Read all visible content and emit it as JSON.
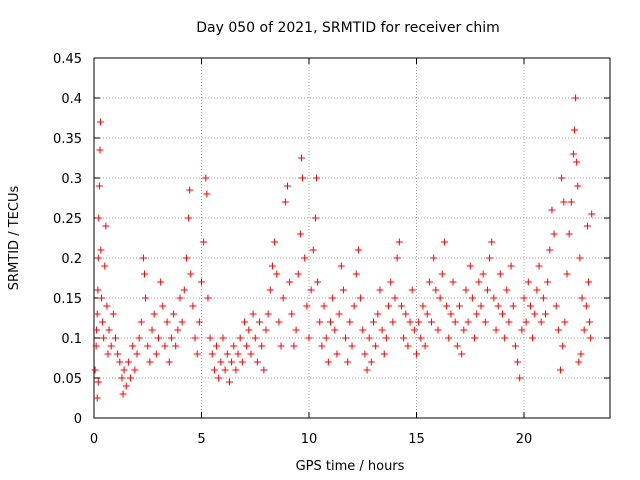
{
  "chart_data": {
    "type": "scatter",
    "title": "Day 050 of 2021, SRMTID for receiver chim",
    "xlabel": "GPS time / hours",
    "ylabel": "SRMTID / TECUs",
    "xlim": [
      0,
      24
    ],
    "ylim": [
      0,
      0.45
    ],
    "x_ticks": [
      0,
      5,
      10,
      15,
      20
    ],
    "x_tick_labels": [
      "0",
      "5",
      "10",
      "15",
      "20"
    ],
    "y_ticks": [
      0,
      0.05,
      0.1,
      0.15,
      0.2,
      0.25,
      0.3,
      0.35,
      0.4,
      0.45
    ],
    "y_tick_labels": [
      "0",
      "0.05",
      "0.1",
      "0.15",
      "0.2",
      "0.25",
      "0.3",
      "0.35",
      "0.4",
      "0.45"
    ],
    "grid": true,
    "marker": "+",
    "color": "#ff0000",
    "series": [
      {
        "name": "SRMTID",
        "points": [
          [
            0.05,
            0.06
          ],
          [
            0.1,
            0.09
          ],
          [
            0.12,
            0.11
          ],
          [
            0.15,
            0.13
          ],
          [
            0.18,
            0.16
          ],
          [
            0.2,
            0.2
          ],
          [
            0.22,
            0.25
          ],
          [
            0.25,
            0.29
          ],
          [
            0.28,
            0.335
          ],
          [
            0.3,
            0.37
          ],
          [
            0.32,
            0.21
          ],
          [
            0.35,
            0.15
          ],
          [
            0.4,
            0.12
          ],
          [
            0.45,
            0.1
          ],
          [
            0.5,
            0.19
          ],
          [
            0.55,
            0.24
          ],
          [
            0.6,
            0.14
          ],
          [
            0.65,
            0.08
          ],
          [
            0.7,
            0.11
          ],
          [
            0.8,
            0.09
          ],
          [
            0.15,
            0.025
          ],
          [
            0.2,
            0.045
          ],
          [
            0.9,
            0.13
          ],
          [
            1.0,
            0.1
          ],
          [
            1.1,
            0.08
          ],
          [
            1.2,
            0.07
          ],
          [
            1.3,
            0.05
          ],
          [
            1.35,
            0.03
          ],
          [
            1.4,
            0.06
          ],
          [
            1.5,
            0.04
          ],
          [
            1.6,
            0.07
          ],
          [
            1.7,
            0.05
          ],
          [
            1.8,
            0.09
          ],
          [
            1.9,
            0.06
          ],
          [
            2.0,
            0.08
          ],
          [
            2.1,
            0.1
          ],
          [
            2.2,
            0.12
          ],
          [
            2.3,
            0.2
          ],
          [
            2.35,
            0.18
          ],
          [
            2.4,
            0.15
          ],
          [
            2.5,
            0.09
          ],
          [
            2.6,
            0.07
          ],
          [
            2.7,
            0.11
          ],
          [
            2.8,
            0.13
          ],
          [
            2.9,
            0.08
          ],
          [
            3.0,
            0.1
          ],
          [
            3.1,
            0.17
          ],
          [
            3.2,
            0.14
          ],
          [
            3.3,
            0.09
          ],
          [
            3.4,
            0.12
          ],
          [
            3.5,
            0.07
          ],
          [
            3.6,
            0.1
          ],
          [
            3.7,
            0.13
          ],
          [
            3.8,
            0.09
          ],
          [
            3.9,
            0.11
          ],
          [
            4.0,
            0.15
          ],
          [
            4.1,
            0.12
          ],
          [
            4.2,
            0.16
          ],
          [
            4.3,
            0.2
          ],
          [
            4.4,
            0.25
          ],
          [
            4.45,
            0.285
          ],
          [
            4.5,
            0.18
          ],
          [
            4.6,
            0.14
          ],
          [
            4.7,
            0.1
          ],
          [
            4.8,
            0.08
          ],
          [
            4.9,
            0.12
          ],
          [
            5.0,
            0.17
          ],
          [
            5.1,
            0.22
          ],
          [
            5.2,
            0.3
          ],
          [
            5.25,
            0.28
          ],
          [
            5.3,
            0.15
          ],
          [
            5.4,
            0.1
          ],
          [
            5.5,
            0.08
          ],
          [
            5.6,
            0.06
          ],
          [
            5.7,
            0.09
          ],
          [
            5.8,
            0.05
          ],
          [
            5.9,
            0.07
          ],
          [
            6.0,
            0.1
          ],
          [
            6.1,
            0.06
          ],
          [
            6.2,
            0.08
          ],
          [
            6.3,
            0.045
          ],
          [
            6.4,
            0.07
          ],
          [
            6.5,
            0.09
          ],
          [
            6.6,
            0.06
          ],
          [
            6.7,
            0.08
          ],
          [
            6.8,
            0.1
          ],
          [
            6.9,
            0.07
          ],
          [
            7.0,
            0.12
          ],
          [
            7.1,
            0.09
          ],
          [
            7.2,
            0.11
          ],
          [
            7.3,
            0.08
          ],
          [
            7.4,
            0.13
          ],
          [
            7.5,
            0.1
          ],
          [
            7.6,
            0.07
          ],
          [
            7.7,
            0.12
          ],
          [
            7.8,
            0.09
          ],
          [
            7.9,
            0.06
          ],
          [
            8.0,
            0.11
          ],
          [
            8.1,
            0.13
          ],
          [
            8.2,
            0.16
          ],
          [
            8.3,
            0.19
          ],
          [
            8.4,
            0.22
          ],
          [
            8.5,
            0.18
          ],
          [
            8.6,
            0.12
          ],
          [
            8.7,
            0.09
          ],
          [
            8.8,
            0.15
          ],
          [
            8.9,
            0.27
          ],
          [
            9.0,
            0.29
          ],
          [
            9.1,
            0.17
          ],
          [
            9.2,
            0.13
          ],
          [
            9.3,
            0.09
          ],
          [
            9.4,
            0.11
          ],
          [
            9.5,
            0.18
          ],
          [
            9.6,
            0.23
          ],
          [
            9.65,
            0.325
          ],
          [
            9.7,
            0.3
          ],
          [
            9.8,
            0.2
          ],
          [
            9.9,
            0.14
          ],
          [
            10.0,
            0.1
          ],
          [
            10.1,
            0.16
          ],
          [
            10.2,
            0.21
          ],
          [
            10.3,
            0.25
          ],
          [
            10.35,
            0.3
          ],
          [
            10.4,
            0.17
          ],
          [
            10.5,
            0.12
          ],
          [
            10.6,
            0.09
          ],
          [
            10.7,
            0.14
          ],
          [
            10.8,
            0.1
          ],
          [
            10.9,
            0.07
          ],
          [
            11.0,
            0.12
          ],
          [
            11.1,
            0.15
          ],
          [
            11.2,
            0.11
          ],
          [
            11.3,
            0.08
          ],
          [
            11.4,
            0.13
          ],
          [
            11.5,
            0.19
          ],
          [
            11.6,
            0.16
          ],
          [
            11.7,
            0.1
          ],
          [
            11.8,
            0.07
          ],
          [
            11.9,
            0.12
          ],
          [
            12.0,
            0.09
          ],
          [
            12.1,
            0.14
          ],
          [
            12.2,
            0.18
          ],
          [
            12.3,
            0.21
          ],
          [
            12.4,
            0.15
          ],
          [
            12.5,
            0.11
          ],
          [
            12.6,
            0.08
          ],
          [
            12.7,
            0.06
          ],
          [
            12.8,
            0.1
          ],
          [
            12.9,
            0.07
          ],
          [
            13.0,
            0.12
          ],
          [
            13.1,
            0.09
          ],
          [
            13.2,
            0.13
          ],
          [
            13.3,
            0.16
          ],
          [
            13.4,
            0.11
          ],
          [
            13.5,
            0.08
          ],
          [
            13.6,
            0.1
          ],
          [
            13.7,
            0.14
          ],
          [
            13.8,
            0.17
          ],
          [
            13.9,
            0.12
          ],
          [
            14.0,
            0.15
          ],
          [
            14.1,
            0.2
          ],
          [
            14.2,
            0.22
          ],
          [
            14.3,
            0.14
          ],
          [
            14.4,
            0.1
          ],
          [
            14.5,
            0.13
          ],
          [
            14.6,
            0.09
          ],
          [
            14.7,
            0.12
          ],
          [
            14.8,
            0.16
          ],
          [
            14.9,
            0.11
          ],
          [
            15.0,
            0.08
          ],
          [
            15.1,
            0.12
          ],
          [
            15.2,
            0.1
          ],
          [
            15.3,
            0.14
          ],
          [
            15.4,
            0.09
          ],
          [
            15.5,
            0.13
          ],
          [
            15.6,
            0.17
          ],
          [
            15.7,
            0.12
          ],
          [
            15.8,
            0.2
          ],
          [
            15.9,
            0.16
          ],
          [
            16.0,
            0.11
          ],
          [
            16.1,
            0.15
          ],
          [
            16.2,
            0.18
          ],
          [
            16.3,
            0.22
          ],
          [
            16.4,
            0.14
          ],
          [
            16.5,
            0.1
          ],
          [
            16.6,
            0.13
          ],
          [
            16.7,
            0.17
          ],
          [
            16.8,
            0.12
          ],
          [
            16.9,
            0.09
          ],
          [
            17.0,
            0.14
          ],
          [
            17.1,
            0.08
          ],
          [
            17.2,
            0.11
          ],
          [
            17.3,
            0.16
          ],
          [
            17.4,
            0.12
          ],
          [
            17.5,
            0.19
          ],
          [
            17.6,
            0.15
          ],
          [
            17.7,
            0.1
          ],
          [
            17.8,
            0.13
          ],
          [
            17.9,
            0.17
          ],
          [
            18.0,
            0.14
          ],
          [
            18.1,
            0.18
          ],
          [
            18.2,
            0.12
          ],
          [
            18.3,
            0.16
          ],
          [
            18.4,
            0.2
          ],
          [
            18.5,
            0.22
          ],
          [
            18.6,
            0.15
          ],
          [
            18.7,
            0.11
          ],
          [
            18.8,
            0.14
          ],
          [
            18.9,
            0.18
          ],
          [
            19.0,
            0.13
          ],
          [
            19.1,
            0.1
          ],
          [
            19.2,
            0.16
          ],
          [
            19.3,
            0.12
          ],
          [
            19.4,
            0.19
          ],
          [
            19.5,
            0.14
          ],
          [
            19.6,
            0.09
          ],
          [
            19.7,
            0.07
          ],
          [
            19.8,
            0.05
          ],
          [
            19.9,
            0.11
          ],
          [
            20.0,
            0.15
          ],
          [
            20.1,
            0.12
          ],
          [
            20.2,
            0.17
          ],
          [
            20.3,
            0.14
          ],
          [
            20.4,
            0.1
          ],
          [
            20.5,
            0.13
          ],
          [
            20.6,
            0.16
          ],
          [
            20.7,
            0.19
          ],
          [
            20.8,
            0.12
          ],
          [
            20.9,
            0.15
          ],
          [
            21.0,
            0.13
          ],
          [
            21.1,
            0.17
          ],
          [
            21.2,
            0.21
          ],
          [
            21.3,
            0.26
          ],
          [
            21.4,
            0.23
          ],
          [
            21.5,
            0.14
          ],
          [
            21.6,
            0.11
          ],
          [
            21.7,
            0.06
          ],
          [
            21.8,
            0.09
          ],
          [
            21.9,
            0.12
          ],
          [
            22.0,
            0.18
          ],
          [
            22.1,
            0.23
          ],
          [
            22.2,
            0.27
          ],
          [
            22.3,
            0.33
          ],
          [
            22.35,
            0.36
          ],
          [
            22.4,
            0.4
          ],
          [
            22.45,
            0.32
          ],
          [
            22.5,
            0.29
          ],
          [
            22.6,
            0.2
          ],
          [
            22.7,
            0.15
          ],
          [
            22.8,
            0.11
          ],
          [
            22.9,
            0.14
          ],
          [
            22.95,
            0.24
          ],
          [
            23.0,
            0.17
          ],
          [
            23.05,
            0.12
          ],
          [
            23.1,
            0.1
          ],
          [
            23.15,
            0.255
          ],
          [
            22.55,
            0.07
          ],
          [
            22.65,
            0.08
          ],
          [
            21.85,
            0.27
          ],
          [
            21.75,
            0.3
          ]
        ]
      }
    ]
  }
}
